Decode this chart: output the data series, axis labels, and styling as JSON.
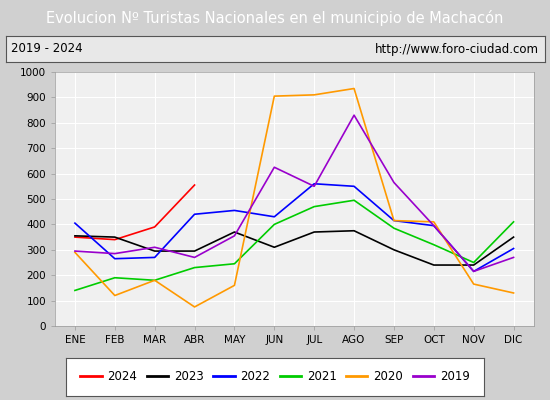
{
  "title": "Evolucion Nº Turistas Nacionales en el municipio de Machacón",
  "subtitle_left": "2019 - 2024",
  "subtitle_right": "http://www.foro-ciudad.com",
  "xlabel_months": [
    "ENE",
    "FEB",
    "MAR",
    "ABR",
    "MAY",
    "JUN",
    "JUL",
    "AGO",
    "SEP",
    "OCT",
    "NOV",
    "DIC"
  ],
  "ylim": [
    0,
    1000
  ],
  "yticks": [
    0,
    100,
    200,
    300,
    400,
    500,
    600,
    700,
    800,
    900,
    1000
  ],
  "series": {
    "2024": {
      "color": "#ff0000",
      "values": [
        350,
        340,
        390,
        555,
        null,
        null,
        null,
        null,
        null,
        null,
        null,
        null
      ]
    },
    "2023": {
      "color": "#000000",
      "values": [
        355,
        350,
        295,
        295,
        370,
        310,
        370,
        375,
        300,
        240,
        240,
        350
      ]
    },
    "2022": {
      "color": "#0000ff",
      "values": [
        405,
        265,
        270,
        440,
        455,
        430,
        560,
        550,
        415,
        395,
        215,
        305
      ]
    },
    "2021": {
      "color": "#00cc00",
      "values": [
        140,
        190,
        180,
        230,
        245,
        400,
        470,
        495,
        385,
        320,
        250,
        410
      ]
    },
    "2020": {
      "color": "#ff9900",
      "values": [
        290,
        120,
        180,
        75,
        160,
        905,
        910,
        935,
        415,
        410,
        165,
        130
      ]
    },
    "2019": {
      "color": "#9900cc",
      "values": [
        295,
        285,
        310,
        270,
        355,
        625,
        550,
        830,
        565,
        395,
        215,
        270
      ]
    }
  },
  "title_bg_color": "#4472c4",
  "title_color": "#ffffff",
  "subtitle_bg_color": "#e8e8e8",
  "plot_bg_color": "#f0f0f0",
  "grid_color": "#ffffff",
  "border_color": "#4472c4",
  "fig_bg_color": "#d0d0d0"
}
